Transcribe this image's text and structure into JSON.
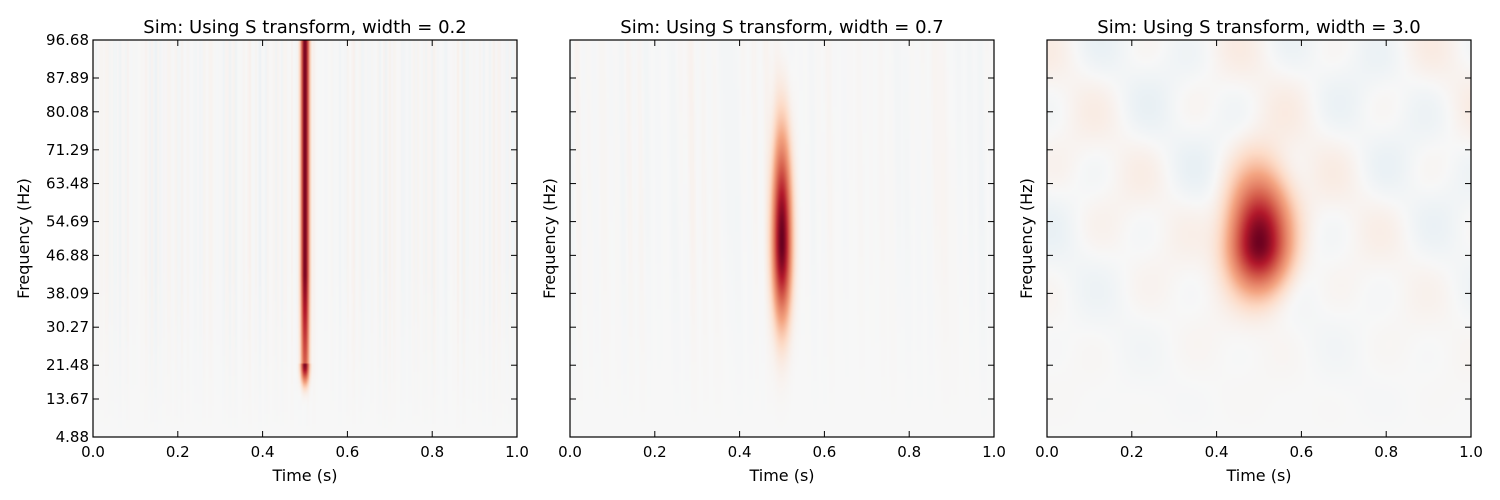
{
  "chart_data": [
    {
      "type": "heatmap",
      "title": "Sim: Using S transform, width = 0.2",
      "xlabel": "Time (s)",
      "ylabel": "Frequency (Hz)",
      "xlim": [
        0.0,
        1.0
      ],
      "ylim": [
        4.88,
        96.68
      ],
      "x_ticks": [
        "0.0",
        "0.2",
        "0.4",
        "0.6",
        "0.8",
        "1.0"
      ],
      "y_ticks": [
        "4.88",
        "13.67",
        "21.48",
        "30.27",
        "38.09",
        "46.88",
        "54.69",
        "63.48",
        "71.29",
        "80.08",
        "87.89",
        "96.68"
      ],
      "show_y_tick_labels": true,
      "blob": {
        "time": 0.5,
        "freq_center": 50,
        "freq_range": [
          22,
          96.68
        ],
        "time_spread": 0.006,
        "freq_spread": 30,
        "peak": 1.0,
        "shape": "ridge"
      },
      "noise_amplitude": 0.09
    },
    {
      "type": "heatmap",
      "title": "Sim: Using S transform, width = 0.7",
      "xlabel": "Time (s)",
      "ylabel": "Frequency (Hz)",
      "xlim": [
        0.0,
        1.0
      ],
      "ylim": [
        4.88,
        96.68
      ],
      "x_ticks": [
        "0.0",
        "0.2",
        "0.4",
        "0.6",
        "0.8",
        "1.0"
      ],
      "y_ticks": [
        "4.88",
        "13.67",
        "21.48",
        "30.27",
        "38.09",
        "46.88",
        "54.69",
        "63.48",
        "71.29",
        "80.08",
        "87.89",
        "96.68"
      ],
      "show_y_tick_labels": false,
      "blob": {
        "time": 0.5,
        "freq_center": 50,
        "freq_range": [
          33,
          75
        ],
        "time_spread": 0.014,
        "freq_spread": 11,
        "peak": 1.0,
        "shape": "ellipse"
      },
      "noise_amplitude": 0.06
    },
    {
      "type": "heatmap",
      "title": "Sim: Using S transform, width = 3.0",
      "xlabel": "Time (s)",
      "ylabel": "Frequency (Hz)",
      "xlim": [
        0.0,
        1.0
      ],
      "ylim": [
        4.88,
        96.68
      ],
      "x_ticks": [
        "0.0",
        "0.2",
        "0.4",
        "0.6",
        "0.8",
        "1.0"
      ],
      "y_ticks": [
        "4.88",
        "13.67",
        "21.48",
        "30.27",
        "38.09",
        "46.88",
        "54.69",
        "63.48",
        "71.29",
        "80.08",
        "87.89",
        "96.68"
      ],
      "show_y_tick_labels": false,
      "blob": {
        "time": 0.5,
        "freq_center": 50,
        "freq_range": [
          37,
          63
        ],
        "time_spread": 0.045,
        "freq_spread": 7,
        "peak": 1.0,
        "shape": "ellipse"
      },
      "noise_amplitude": 0.08
    }
  ]
}
